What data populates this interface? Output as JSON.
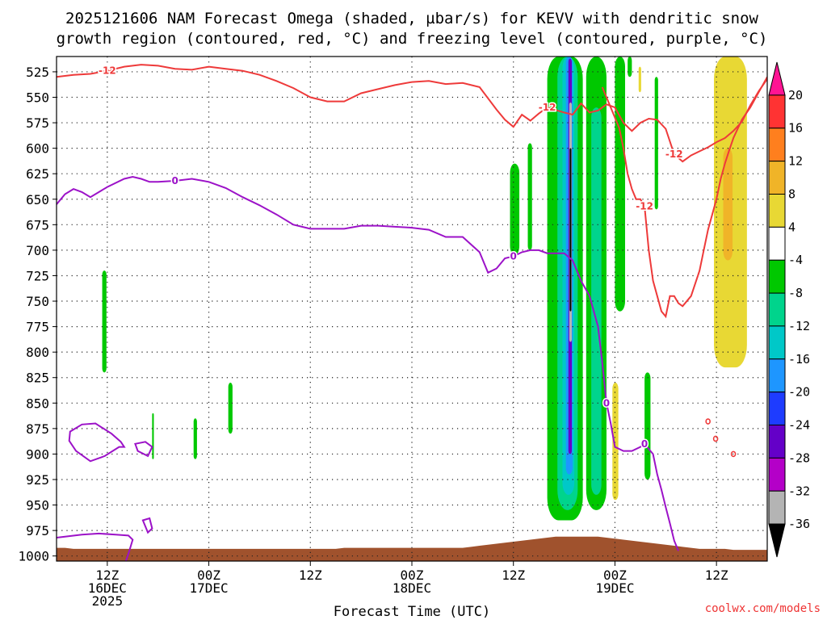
{
  "chart_data": {
    "type": "heatmap",
    "title_line1": "2025121606 NAM Forecast Omega (shaded, µbar/s) for KEVV with dendritic snow",
    "title_line2": "growth region (contoured, red, °C) and freezing level (contoured, purple, °C)",
    "xlabel": "Forecast Time (UTC)",
    "credit": "coolwx.com/models",
    "x_range_hours": [
      0,
      84
    ],
    "y_range_hpa": [
      510,
      1005
    ],
    "y_ticks": [
      525,
      550,
      575,
      600,
      625,
      650,
      675,
      700,
      725,
      750,
      775,
      800,
      825,
      850,
      875,
      900,
      925,
      950,
      975,
      1000
    ],
    "x_ticks": [
      {
        "hour": 6,
        "l1": "12Z",
        "l2": "16DEC",
        "l3": "2025"
      },
      {
        "hour": 18,
        "l1": "00Z",
        "l2": "17DEC",
        "l3": ""
      },
      {
        "hour": 30,
        "l1": "12Z",
        "l2": "",
        "l3": ""
      },
      {
        "hour": 42,
        "l1": "00Z",
        "l2": "18DEC",
        "l3": ""
      },
      {
        "hour": 54,
        "l1": "12Z",
        "l2": "",
        "l3": ""
      },
      {
        "hour": 66,
        "l1": "00Z",
        "l2": "19DEC",
        "l3": ""
      },
      {
        "hour": 78,
        "l1": "12Z",
        "l2": "",
        "l3": ""
      }
    ],
    "colorbar": {
      "labels": [
        "20",
        "16",
        "12",
        "8",
        "4",
        "-4",
        "-8",
        "-12",
        "-16",
        "-20",
        "-24",
        "-28",
        "-32",
        "-36"
      ],
      "colors": [
        "#ff1493",
        "#ff3333",
        "#ff7f1e",
        "#f0b428",
        "#e8d834",
        "#ffffff",
        "#00c800",
        "#00d48c",
        "#00c8c8",
        "#1e96ff",
        "#1e3cff",
        "#6400c8",
        "#b400c8",
        "#b4b4b4",
        "#000000"
      ]
    },
    "omega_bands": [
      {
        "x0": 5.4,
        "x1": 5.9,
        "p0": 720,
        "p1": 820,
        "color": "#00c800"
      },
      {
        "x0": 11.3,
        "x1": 11.5,
        "p0": 860,
        "p1": 905,
        "color": "#00c800"
      },
      {
        "x0": 16.2,
        "x1": 16.6,
        "p0": 865,
        "p1": 905,
        "color": "#00c800"
      },
      {
        "x0": 20.3,
        "x1": 20.8,
        "p0": 830,
        "p1": 880,
        "color": "#00c800"
      },
      {
        "x0": 53.6,
        "x1": 54.7,
        "p0": 615,
        "p1": 705,
        "color": "#00c800"
      },
      {
        "x0": 55.7,
        "x1": 56.2,
        "p0": 595,
        "p1": 700,
        "color": "#00c800"
      },
      {
        "x0": 58.0,
        "x1": 62.2,
        "p0": 510,
        "p1": 965,
        "color": "#00c800"
      },
      {
        "x0": 59.2,
        "x1": 61.6,
        "p0": 510,
        "p1": 955,
        "color": "#00d48c"
      },
      {
        "x0": 59.8,
        "x1": 61.2,
        "p0": 510,
        "p1": 940,
        "color": "#00c8c8"
      },
      {
        "x0": 60.2,
        "x1": 61.0,
        "p0": 510,
        "p1": 920,
        "color": "#1e96ff"
      },
      {
        "x0": 60.5,
        "x1": 60.9,
        "p0": 512,
        "p1": 900,
        "color": "#6400c8"
      },
      {
        "x0": 60.6,
        "x1": 60.9,
        "p0": 555,
        "p1": 790,
        "color": "#b4b4b4"
      },
      {
        "x0": 60.65,
        "x1": 60.85,
        "p0": 600,
        "p1": 760,
        "color": "#000000"
      },
      {
        "x0": 62.6,
        "x1": 65.0,
        "p0": 510,
        "p1": 955,
        "color": "#00c800"
      },
      {
        "x0": 63.2,
        "x1": 64.4,
        "p0": 560,
        "p1": 940,
        "color": "#00d48c"
      },
      {
        "x0": 66.0,
        "x1": 67.2,
        "p0": 510,
        "p1": 760,
        "color": "#00c800"
      },
      {
        "x0": 67.5,
        "x1": 68.0,
        "p0": 510,
        "p1": 530,
        "color": "#00c800"
      },
      {
        "x0": 68.8,
        "x1": 69.1,
        "p0": 520,
        "p1": 545,
        "color": "#e8d834"
      },
      {
        "x0": 70.7,
        "x1": 71.1,
        "p0": 530,
        "p1": 660,
        "color": "#00c800"
      },
      {
        "x0": 65.7,
        "x1": 66.4,
        "p0": 830,
        "p1": 945,
        "color": "#e8d834"
      },
      {
        "x0": 69.5,
        "x1": 70.2,
        "p0": 820,
        "p1": 925,
        "color": "#00c800"
      },
      {
        "x0": 77.7,
        "x1": 81.6,
        "p0": 510,
        "p1": 815,
        "color": "#e8d834"
      },
      {
        "x0": 78.8,
        "x1": 79.9,
        "p0": 600,
        "p1": 710,
        "color": "#f0b428"
      }
    ],
    "dgz_top": {
      "label": "-12",
      "x": [
        0,
        2,
        4,
        6,
        8,
        10,
        12,
        14,
        16,
        18,
        20,
        22,
        24,
        26,
        28,
        30,
        32,
        34,
        36,
        38,
        40,
        42,
        44,
        46,
        48,
        50,
        52,
        53,
        54,
        55,
        56,
        57,
        58,
        60,
        61,
        62,
        63,
        64,
        65,
        66,
        67,
        68,
        69,
        70,
        71,
        72,
        73,
        74,
        75,
        76,
        77,
        78,
        79,
        80,
        81,
        82,
        83,
        84
      ],
      "p": [
        530,
        528,
        527,
        524,
        520,
        518,
        519,
        522,
        523,
        520,
        522,
        524,
        528,
        534,
        541,
        550,
        554,
        554,
        546,
        542,
        538,
        535,
        534,
        537,
        536,
        540,
        562,
        572,
        579,
        567,
        573,
        566,
        560,
        565,
        567,
        556,
        565,
        563,
        557,
        560,
        575,
        583,
        575,
        571,
        572,
        581,
        606,
        613,
        607,
        603,
        599,
        594,
        590,
        583,
        574,
        558,
        544,
        532
      ]
    },
    "dgz_bottom": {
      "label": "-12",
      "x": [
        64.5,
        65.5,
        66.5,
        67.0,
        67.5,
        68.0,
        68.5,
        69.0,
        69.5,
        70.0,
        70.5,
        71.0,
        71.5,
        72.0,
        72.5,
        73.0,
        73.5,
        74.0,
        75.0,
        76.0,
        76.5,
        77.0,
        77.5,
        78.0,
        78.5,
        79.0,
        79.5,
        80.0,
        81.0,
        82.0,
        83.0,
        84.0
      ],
      "p": [
        540,
        560,
        580,
        600,
        625,
        640,
        650,
        650,
        657,
        700,
        730,
        745,
        760,
        765,
        745,
        745,
        752,
        755,
        745,
        720,
        700,
        680,
        665,
        650,
        630,
        615,
        602,
        590,
        572,
        560,
        545,
        530
      ]
    },
    "freezing_level": {
      "label": "0",
      "x": [
        0,
        1,
        2,
        3,
        4,
        6,
        8,
        9,
        10,
        11,
        12,
        14,
        16,
        18,
        20,
        22,
        24,
        26,
        28,
        30,
        32,
        34,
        36,
        38,
        40,
        42,
        44,
        46,
        48,
        50,
        51,
        52,
        53,
        53.5,
        54,
        55,
        56,
        57,
        58,
        59,
        60,
        61,
        62,
        63,
        64,
        64.5,
        65.0,
        65.5,
        66.0,
        67.0,
        68.0,
        69.0,
        69.5,
        70.0,
        70.5,
        71.0,
        71.5,
        72.0,
        72.5,
        73.0,
        73.5
      ],
      "p": [
        655,
        645,
        640,
        643,
        648,
        638,
        630,
        628,
        630,
        633,
        633,
        632,
        630,
        633,
        639,
        648,
        656,
        665,
        675,
        679,
        679,
        679,
        676,
        676,
        677,
        678,
        680,
        687,
        687,
        702,
        722,
        718,
        708,
        707,
        706,
        702,
        700,
        700,
        703,
        703,
        703,
        710,
        730,
        745,
        775,
        810,
        850,
        870,
        893,
        897,
        897,
        893,
        890,
        895,
        900,
        920,
        935,
        952,
        968,
        985,
        995
      ]
    },
    "freezing_loops": [
      {
        "x": [
          1.6,
          3.0,
          4.6,
          6.5,
          7.6,
          8.0,
          7.4,
          5.7,
          4.0,
          2.3,
          1.5,
          1.6
        ],
        "p": [
          878,
          871,
          870,
          880,
          888,
          893,
          893,
          902,
          907,
          897,
          887,
          878
        ]
      },
      {
        "x": [
          9.3,
          10.5,
          11.3,
          10.8,
          9.6,
          9.3
        ],
        "p": [
          890,
          888,
          893,
          902,
          897,
          890
        ]
      },
      {
        "x": [
          10.2,
          11.0,
          11.3,
          10.8,
          10.2
        ],
        "p": [
          965,
          963,
          973,
          977,
          965
        ]
      }
    ],
    "freezing_bottom": {
      "x": [
        0,
        1,
        3,
        5,
        7,
        8.5,
        9,
        8.6,
        8.2
      ],
      "p": [
        982,
        981,
        979,
        978,
        979,
        980,
        984,
        995,
        1005
      ]
    },
    "small_red_marks": [
      {
        "x": 77.0,
        "p": 868
      },
      {
        "x": 77.9,
        "p": 885
      },
      {
        "x": 80.0,
        "p": 900
      }
    ],
    "terrain_p": [
      992,
      992,
      993,
      993,
      993,
      993,
      993,
      993,
      993,
      993,
      993,
      993,
      993,
      993,
      993,
      993,
      993,
      993,
      993,
      993,
      993,
      993,
      993,
      993,
      993,
      993,
      993,
      993,
      993,
      993,
      993,
      993,
      993,
      993,
      992,
      992,
      992,
      992,
      992,
      992,
      992,
      992,
      992,
      992,
      992,
      992,
      992,
      992,
      992,
      991,
      990,
      989,
      988,
      987,
      986,
      985,
      984,
      983,
      982,
      981,
      981,
      981,
      981,
      981,
      981,
      982,
      983,
      984,
      985,
      986,
      987,
      988,
      989,
      990,
      991,
      992,
      993,
      993,
      993,
      993,
      994,
      994,
      994,
      994,
      994
    ]
  }
}
